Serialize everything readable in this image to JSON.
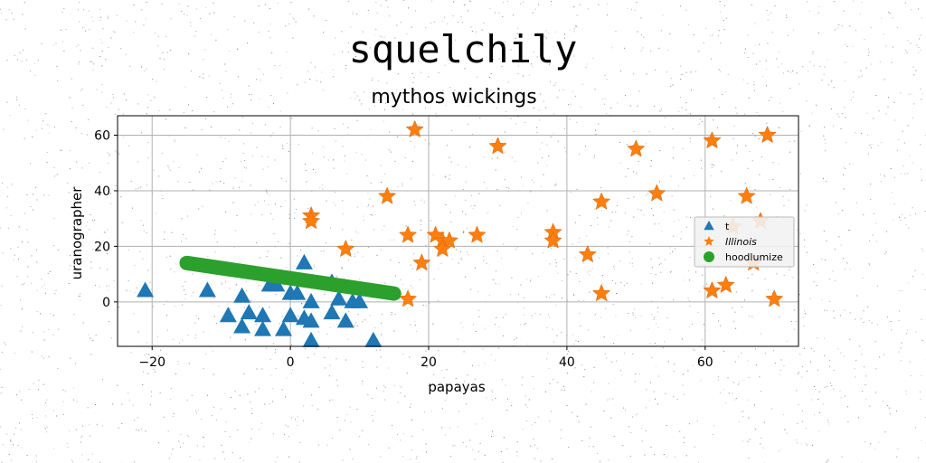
{
  "chart_data": {
    "type": "scatter",
    "title": "squelchily",
    "subtitle": "mythos wickings",
    "xlabel": "papayas",
    "ylabel": "uranographer",
    "xlim": [
      -25,
      73.5
    ],
    "ylim": [
      -16,
      67
    ],
    "xticks": [
      -20,
      0,
      20,
      40,
      60
    ],
    "yticks": [
      0,
      20,
      40,
      60
    ],
    "grid": true,
    "legend_position": "center-right",
    "series": [
      {
        "name": "t",
        "marker": "triangle",
        "color": "#1f77b4",
        "points": [
          [
            -21,
            4
          ],
          [
            -12,
            4
          ],
          [
            -9,
            -5
          ],
          [
            -7,
            2
          ],
          [
            -7,
            -9
          ],
          [
            -6,
            -4
          ],
          [
            -4,
            -5
          ],
          [
            -4,
            -10
          ],
          [
            -3,
            6
          ],
          [
            -2,
            6
          ],
          [
            -1,
            -10
          ],
          [
            0,
            3
          ],
          [
            0,
            -5
          ],
          [
            1,
            3
          ],
          [
            2,
            14
          ],
          [
            2,
            -6
          ],
          [
            3,
            -7
          ],
          [
            3,
            -14
          ],
          [
            3,
            0
          ],
          [
            6,
            7
          ],
          [
            6,
            -4
          ],
          [
            7,
            1
          ],
          [
            8,
            -7
          ],
          [
            9,
            0
          ],
          [
            10,
            0
          ],
          [
            12,
            -14
          ]
        ]
      },
      {
        "name": "Illinois",
        "marker": "star",
        "color": "#ff7f0e",
        "points": [
          [
            18,
            62
          ],
          [
            30,
            56
          ],
          [
            50,
            55
          ],
          [
            61,
            58
          ],
          [
            69,
            60
          ],
          [
            14,
            38
          ],
          [
            53,
            39
          ],
          [
            66,
            38
          ],
          [
            45,
            36
          ],
          [
            3,
            31
          ],
          [
            3,
            29
          ],
          [
            8,
            19
          ],
          [
            17,
            24
          ],
          [
            21,
            24
          ],
          [
            22,
            22
          ],
          [
            23,
            22
          ],
          [
            22,
            19
          ],
          [
            27,
            24
          ],
          [
            38,
            25
          ],
          [
            38,
            22
          ],
          [
            43,
            17
          ],
          [
            19,
            14
          ],
          [
            64,
            27
          ],
          [
            68,
            29
          ],
          [
            67,
            14
          ],
          [
            17,
            1
          ],
          [
            45,
            3
          ],
          [
            61,
            4
          ],
          [
            63,
            6
          ],
          [
            70,
            1
          ]
        ]
      },
      {
        "name": "hoodlumize",
        "marker": "line",
        "color": "#2ca02c",
        "points": [
          [
            -15,
            14
          ],
          [
            15,
            3
          ]
        ]
      }
    ]
  }
}
